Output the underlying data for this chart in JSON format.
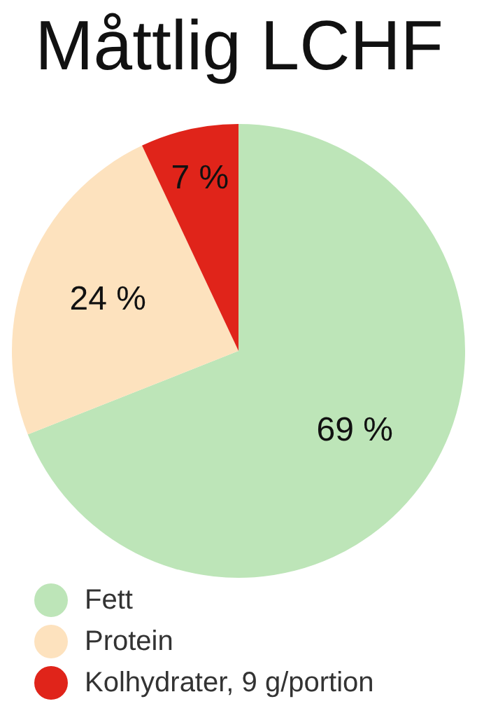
{
  "chart_data": {
    "type": "pie",
    "title": "Måttlig LCHF",
    "categories": [
      "Fett",
      "Protein",
      "Kolhydrater, 9 g/portion"
    ],
    "values": [
      69,
      24,
      7
    ],
    "colors": [
      "#bde5b8",
      "#fde2be",
      "#e0241a"
    ],
    "value_labels": [
      "69 %",
      "24 %",
      "7 %"
    ],
    "legend": "bottom"
  }
}
